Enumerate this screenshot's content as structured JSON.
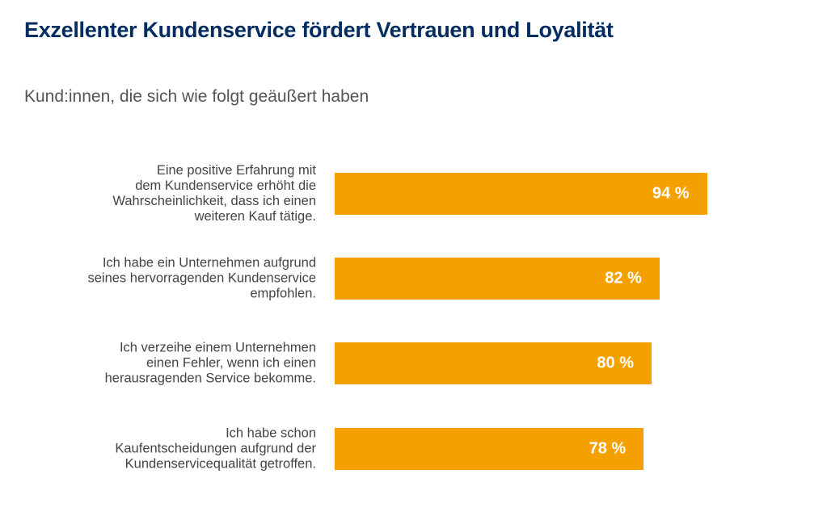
{
  "chart_data": {
    "type": "bar",
    "orientation": "horizontal",
    "title": "Exzellenter Kundenservice fördert Vertrauen und Loyalität",
    "subtitle": "Kund:innen, die sich wie folgt geäußert haben",
    "categories": [
      "Eine positive Erfahrung mit\ndem Kundenservice erhöht die\nWahrscheinlichkeit, dass ich einen\nweiteren Kauf tätige.",
      "Ich habe ein Unternehmen aufgrund\nseines hervorragenden Kundenservice\nempfohlen.",
      "Ich verzeihe einem Unternehmen\neinen Fehler, wenn ich einen\nherausragenden Service bekomme.",
      "Ich habe schon\nKaufentscheidungen aufgrund der\nKundenservicequalität getroffen."
    ],
    "values": [
      94,
      82,
      80,
      78
    ],
    "data_labels": [
      "94 %",
      "82 %",
      "80 %",
      "78 %"
    ],
    "unit": "%",
    "xlim": [
      0,
      100
    ],
    "grid": false,
    "bar_color": "#f4a100",
    "title_color": "#032d60"
  }
}
